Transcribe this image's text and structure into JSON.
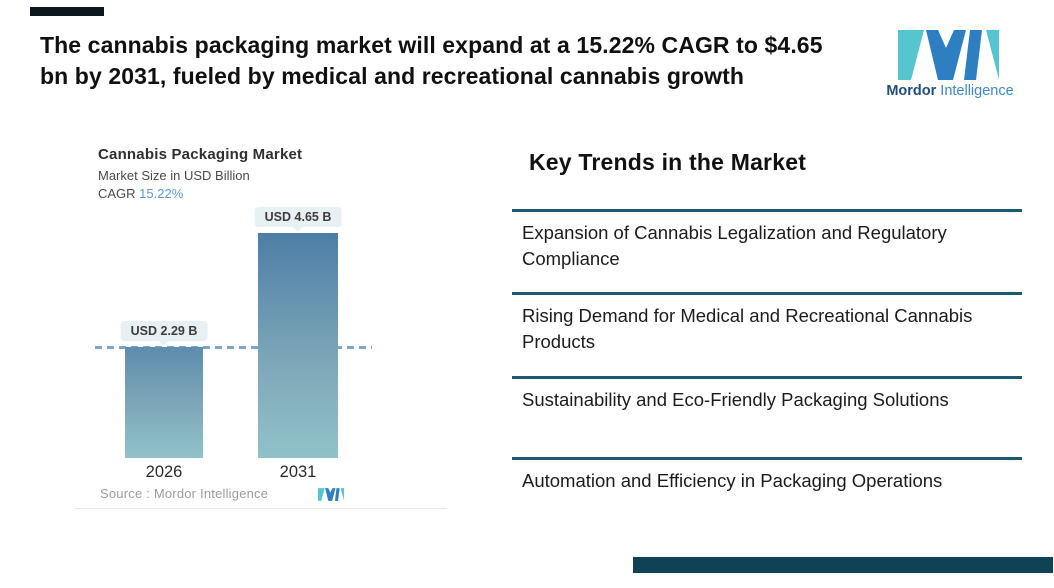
{
  "accents": {
    "top_left_bar_color": "#0c171d",
    "bottom_right_bar_color": "#0f4254"
  },
  "header": {
    "title_line1": "The cannabis packaging market will expand at a 15.22% CAGR to $4.65",
    "title_line2": "bn by 2031, fueled by medical and recreational cannabis growth"
  },
  "logo": {
    "word_bold": "Mordor",
    "word_regular": " Intelligence",
    "teal": "#56c5cf",
    "blue": "#2e7ec2",
    "text_bold_color": "#1e4e7c",
    "text_regular_color": "#3e87c8"
  },
  "chart_data": {
    "type": "bar",
    "title": "Cannabis Packaging Market",
    "subtitle": "Market Size in USD Billion",
    "cagr_label": "CAGR ",
    "cagr_value": "15.22%",
    "categories": [
      "2026",
      "2031"
    ],
    "values": [
      2.29,
      4.65
    ],
    "value_labels": [
      "USD 2.29 B",
      "USD 4.65 B"
    ],
    "ylim": [
      0,
      5
    ],
    "reference_line_value": 2.29,
    "grid": false,
    "legend": false,
    "source": "Source :  Mordor Intelligence",
    "colors": {
      "bar_top_2031": "#4e7ea6",
      "bar_top_2026": "#5e8cad",
      "bar_bottom": "#90c2c9",
      "reference_dash": "#7fa6c8",
      "cagr_value_text": "#5c9bd0",
      "value_pill_bg": "#e9f0f4"
    }
  },
  "trends": {
    "heading": "Key Trends in the Market",
    "divider_color": "#1e5872",
    "items": [
      "Expansion of Cannabis Legalization and Regulatory Compliance",
      "Rising Demand for Medical and Recreational Cannabis Products",
      "Sustainability and Eco-Friendly Packaging Solutions",
      "Automation and Efficiency in Packaging Operations"
    ]
  }
}
